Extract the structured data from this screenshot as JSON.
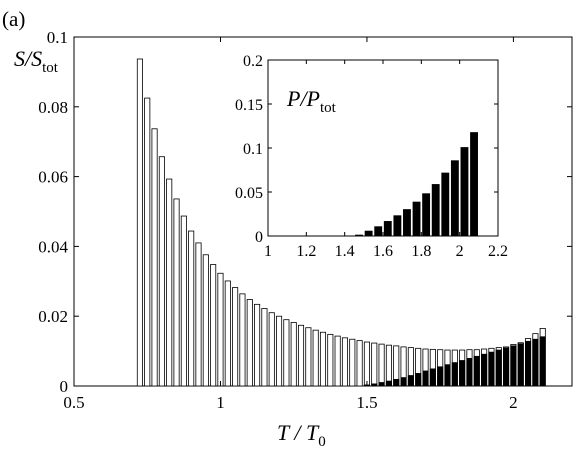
{
  "panel_label": "(a)",
  "colors": {
    "bar_fill_open": "#ffffff",
    "bar_fill_dark": "#000000",
    "axis": "#000000",
    "background": "#ffffff"
  },
  "chart_data": [
    {
      "id": "main",
      "type": "bar",
      "stacked": "overlay",
      "grid": false,
      "legend": "none",
      "xlabel": {
        "main": "T / T",
        "sub": "0"
      },
      "ylabel": {
        "main": "S/S",
        "sub": "tot"
      },
      "xlim": [
        0.5,
        2.2
      ],
      "ylim": [
        0,
        0.1
      ],
      "xticks": [
        0.5,
        1,
        1.5,
        2
      ],
      "xtick_labels": [
        "0.5",
        "1",
        "1.5",
        "2"
      ],
      "yticks": [
        0,
        0.02,
        0.04,
        0.06,
        0.08,
        0.1
      ],
      "ytick_labels": [
        "0",
        "0.02",
        "0.04",
        "0.06",
        "0.08",
        "0.1"
      ],
      "x": [
        0.725,
        0.75,
        0.775,
        0.8,
        0.825,
        0.85,
        0.875,
        0.9,
        0.925,
        0.95,
        0.975,
        1.0,
        1.025,
        1.05,
        1.075,
        1.1,
        1.125,
        1.15,
        1.175,
        1.2,
        1.225,
        1.25,
        1.275,
        1.3,
        1.325,
        1.35,
        1.375,
        1.4,
        1.425,
        1.45,
        1.475,
        1.5,
        1.525,
        1.55,
        1.575,
        1.6,
        1.625,
        1.65,
        1.675,
        1.7,
        1.725,
        1.75,
        1.775,
        1.8,
        1.825,
        1.85,
        1.875,
        1.9,
        1.925,
        1.95,
        1.975,
        2.0,
        2.025,
        2.05,
        2.075,
        2.1
      ],
      "series": [
        {
          "role": "total",
          "fill": "#ffffff",
          "values": [
            0.0937,
            0.0825,
            0.0737,
            0.0657,
            0.0593,
            0.0536,
            0.0487,
            0.0444,
            0.041,
            0.0376,
            0.0348,
            0.0323,
            0.0301,
            0.0282,
            0.0264,
            0.0248,
            0.0234,
            0.0222,
            0.021,
            0.02,
            0.019,
            0.0182,
            0.0174,
            0.0167,
            0.016,
            0.0154,
            0.0148,
            0.0143,
            0.0138,
            0.0134,
            0.013,
            0.0126,
            0.0123,
            0.012,
            0.0117,
            0.0115,
            0.0112,
            0.011,
            0.0108,
            0.0106,
            0.0105,
            0.0104,
            0.0103,
            0.0103,
            0.0103,
            0.0104,
            0.0104,
            0.0106,
            0.0108,
            0.011,
            0.0112,
            0.0119,
            0.0124,
            0.0136,
            0.015,
            0.0165
          ]
        },
        {
          "role": "filled",
          "fill": "#000000",
          "values": [
            0,
            0,
            0,
            0,
            0,
            0,
            0,
            0,
            0,
            0,
            0,
            0,
            0,
            0,
            0,
            0,
            0,
            0,
            0,
            0,
            0,
            0,
            0,
            0,
            0,
            0,
            0,
            0,
            0,
            0,
            0,
            0.0003,
            0.0006,
            0.001,
            0.0014,
            0.0019,
            0.0024,
            0.003,
            0.0036,
            0.0043,
            0.0049,
            0.0055,
            0.0061,
            0.0067,
            0.0073,
            0.0079,
            0.0085,
            0.0091,
            0.0097,
            0.0103,
            0.0109,
            0.0115,
            0.0121,
            0.0128,
            0.0134,
            0.0141
          ]
        }
      ]
    },
    {
      "id": "inset",
      "type": "bar",
      "grid": false,
      "legend": "none",
      "annotation": {
        "main": "P/P",
        "sub": "tot"
      },
      "xlim": [
        1,
        2.2
      ],
      "ylim": [
        0,
        0.2
      ],
      "xticks": [
        1,
        1.2,
        1.4,
        1.6,
        1.8,
        2,
        2.2
      ],
      "xtick_labels": [
        "1",
        "1.2",
        "1.4",
        "1.6",
        "1.8",
        "2",
        "2.2"
      ],
      "yticks": [
        0,
        0.05,
        0.1,
        0.15,
        0.2
      ],
      "ytick_labels": [
        "0",
        "0.05",
        "0.1",
        "0.15",
        "0.2"
      ],
      "x": [
        1.475,
        1.525,
        1.575,
        1.625,
        1.675,
        1.725,
        1.775,
        1.825,
        1.875,
        1.925,
        1.975,
        2.025,
        2.075
      ],
      "values": [
        0.0015,
        0.006,
        0.011,
        0.017,
        0.0235,
        0.0305,
        0.039,
        0.0485,
        0.059,
        0.072,
        0.086,
        0.101,
        0.118
      ]
    }
  ]
}
